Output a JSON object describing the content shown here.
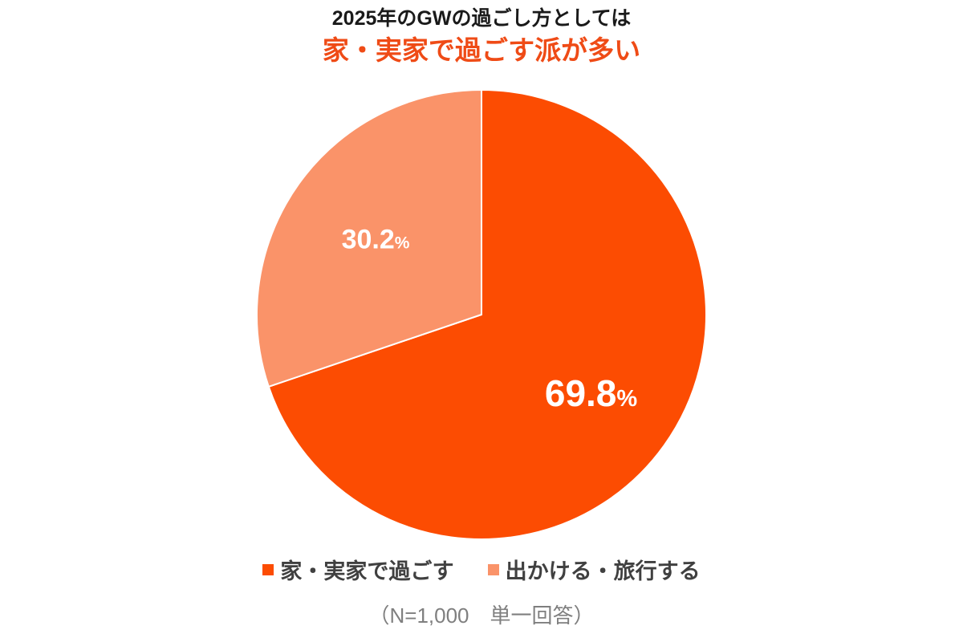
{
  "chart_data": {
    "type": "pie",
    "title": "2025年のGWの過ごし方としては",
    "subtitle": "家・実家で過ごす派が多い",
    "slices": [
      {
        "label": "家・実家で過ごす",
        "value": 69.8,
        "display": "69.8",
        "unit": "%",
        "color": "#fc4c02"
      },
      {
        "label": "出かける・旅行する",
        "value": 30.2,
        "display": "30.2",
        "unit": "%",
        "color": "#fa9369"
      }
    ],
    "legend_position": "bottom",
    "note": "（N=1,000　単一回答）"
  },
  "colors": {
    "subtitle": "#ef4b16",
    "divider": "#ffffff"
  }
}
